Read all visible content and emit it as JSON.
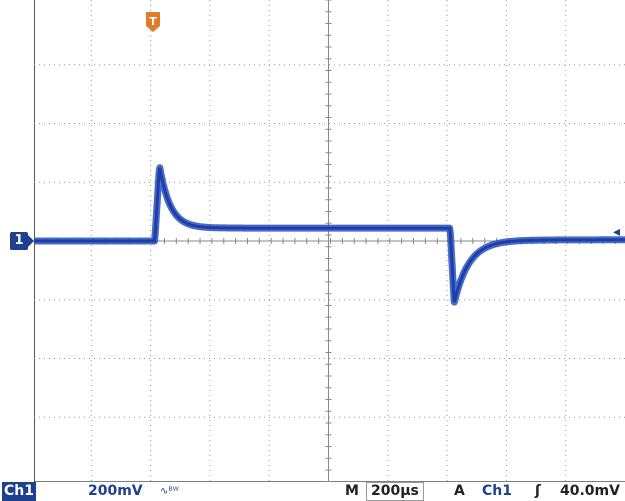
{
  "channel": {
    "name": "Ch1",
    "marker_label": "1",
    "scale": "200mV",
    "bandwidth_icon": "bandwidth-limit-icon",
    "trace_color": "#2a52be"
  },
  "timebase": {
    "label": "M",
    "value": "200µs"
  },
  "trigger": {
    "mode_label": "A",
    "source": "Ch1",
    "slope_icon": "rising-edge-icon",
    "level": "40.0mV",
    "marker_label": "T",
    "marker_color": "#e07b2a"
  },
  "grid": {
    "horizontal_divisions": 10,
    "vertical_divisions": 8
  },
  "waveform": {
    "baseline_div": 0,
    "step_start_div": 2.07,
    "step_end_div": 7.05,
    "peak_div": 1.28,
    "plateau_div": 0.22,
    "undershoot_div": -1.05
  }
}
